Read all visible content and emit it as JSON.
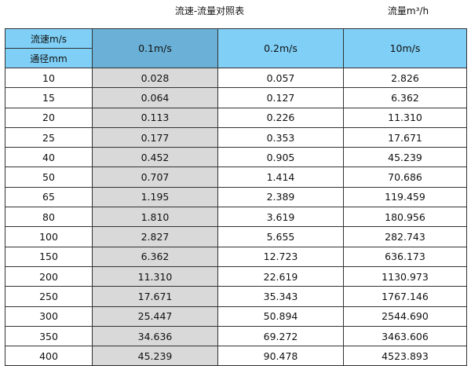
{
  "title": "流速-流量对照表",
  "unit_label": "流量m³/h",
  "header": {
    "velocity_label": "流速m/s",
    "diameter_label": "通径mm",
    "columns": [
      "0.1m/s",
      "0.2m/s",
      "10m/s"
    ]
  },
  "colors": {
    "header": "#7fcff6",
    "selected_header": "#6bb1d7",
    "highlight_column": "#d9d9d9"
  },
  "rows": [
    [
      "10",
      "0.028",
      "0.057",
      "2.826"
    ],
    [
      "15",
      "0.064",
      "0.127",
      "6.362"
    ],
    [
      "20",
      "0.113",
      "0.226",
      "11.310"
    ],
    [
      "25",
      "0.177",
      "0.353",
      "17.671"
    ],
    [
      "40",
      "0.452",
      "0.905",
      "45.239"
    ],
    [
      "50",
      "0.707",
      "1.414",
      "70.686"
    ],
    [
      "65",
      "1.195",
      "2.389",
      "119.459"
    ],
    [
      "80",
      "1.810",
      "3.619",
      "180.956"
    ],
    [
      "100",
      "2.827",
      "5.655",
      "282.743"
    ],
    [
      "150",
      "6.362",
      "12.723",
      "636.173"
    ],
    [
      "200",
      "11.310",
      "22.619",
      "1130.973"
    ],
    [
      "250",
      "17.671",
      "35.343",
      "1767.146"
    ],
    [
      "300",
      "25.447",
      "50.894",
      "2544.690"
    ],
    [
      "350",
      "34.636",
      "69.272",
      "3463.606"
    ],
    [
      "400",
      "45.239",
      "90.478",
      "4523.893"
    ]
  ]
}
